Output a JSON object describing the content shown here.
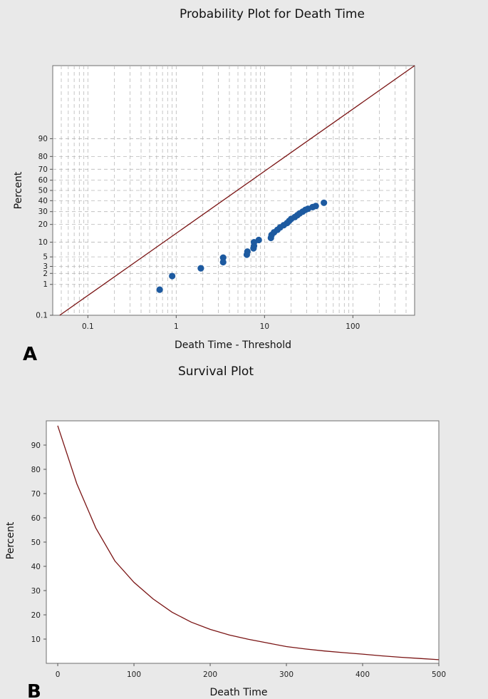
{
  "colors": {
    "points": "#1d5aa0",
    "line": "#7a1414",
    "background": "#e9e9e9",
    "plot": "#ffffff"
  },
  "chart_data": [
    {
      "panel": "A",
      "type": "scatter",
      "title": "Probability Plot for Death Time",
      "xlabel": "Death Time - Threshold",
      "ylabel": "Percent",
      "x_scale": "log",
      "y_scale": "probability",
      "xlim": [
        0.04,
        500
      ],
      "ylim": [
        0.1,
        99.9
      ],
      "x_ticks": [
        0.1,
        1,
        10,
        100
      ],
      "x_tick_labels": [
        "0.1",
        "1",
        "10",
        "100"
      ],
      "y_ticks": [
        0.1,
        1,
        2,
        3,
        5,
        10,
        20,
        30,
        40,
        50,
        60,
        70,
        80,
        90
      ],
      "y_tick_labels": [
        "0.1",
        "1",
        "2",
        "3",
        "5",
        "10",
        "20",
        "30",
        "40",
        "50",
        "60",
        "70",
        "80",
        "90"
      ],
      "grid": true,
      "fit_line": {
        "x": [
          0.048,
          500
        ],
        "y": [
          0.1,
          99.9
        ]
      },
      "points": [
        {
          "x": 0.65,
          "y": 0.7
        },
        {
          "x": 0.9,
          "y": 1.7
        },
        {
          "x": 1.9,
          "y": 2.7
        },
        {
          "x": 3.4,
          "y": 3.8
        },
        {
          "x": 3.4,
          "y": 4.8
        },
        {
          "x": 6.3,
          "y": 5.6
        },
        {
          "x": 6.4,
          "y": 6.5
        },
        {
          "x": 7.5,
          "y": 7.6
        },
        {
          "x": 7.6,
          "y": 8.5
        },
        {
          "x": 7.6,
          "y": 10.0
        },
        {
          "x": 8.6,
          "y": 11.0
        },
        {
          "x": 11.8,
          "y": 12.0
        },
        {
          "x": 12.0,
          "y": 13.5
        },
        {
          "x": 12.8,
          "y": 15.0
        },
        {
          "x": 14.0,
          "y": 16.5
        },
        {
          "x": 15.0,
          "y": 18.0
        },
        {
          "x": 16.5,
          "y": 19.5
        },
        {
          "x": 18.0,
          "y": 21.0
        },
        {
          "x": 19.0,
          "y": 22.5
        },
        {
          "x": 20.0,
          "y": 24.0
        },
        {
          "x": 22.0,
          "y": 25.5
        },
        {
          "x": 23.5,
          "y": 27.0
        },
        {
          "x": 25.0,
          "y": 28.5
        },
        {
          "x": 27.0,
          "y": 30.0
        },
        {
          "x": 29.0,
          "y": 31.5
        },
        {
          "x": 31.0,
          "y": 32.5
        },
        {
          "x": 35.0,
          "y": 34.0
        },
        {
          "x": 38.0,
          "y": 35.0
        },
        {
          "x": 47.0,
          "y": 38.0
        }
      ]
    },
    {
      "panel": "B",
      "type": "line",
      "title": "Survival Plot",
      "xlabel": "Death Time",
      "ylabel": "Percent",
      "xlim": [
        -15,
        500
      ],
      "ylim": [
        0,
        100
      ],
      "x_ticks": [
        0,
        100,
        200,
        300,
        400,
        500
      ],
      "x_tick_labels": [
        "0",
        "100",
        "200",
        "300",
        "400",
        "500"
      ],
      "y_ticks": [
        10,
        20,
        30,
        40,
        50,
        60,
        70,
        80,
        90
      ],
      "y_tick_labels": [
        "10",
        "20",
        "30",
        "40",
        "50",
        "60",
        "70",
        "80",
        "90"
      ],
      "grid": false,
      "curve": {
        "x": [
          0,
          25,
          50,
          75,
          100,
          125,
          150,
          175,
          200,
          225,
          250,
          275,
          300,
          325,
          350,
          375,
          400,
          425,
          450,
          475,
          500
        ],
        "y": [
          98,
          74.1,
          55.8,
          42.2,
          33.4,
          26.6,
          21.1,
          17.0,
          14.0,
          11.7,
          9.9,
          8.4,
          6.9,
          5.9,
          5.1,
          4.4,
          3.8,
          3.1,
          2.5,
          2.0,
          1.5
        ]
      }
    }
  ]
}
